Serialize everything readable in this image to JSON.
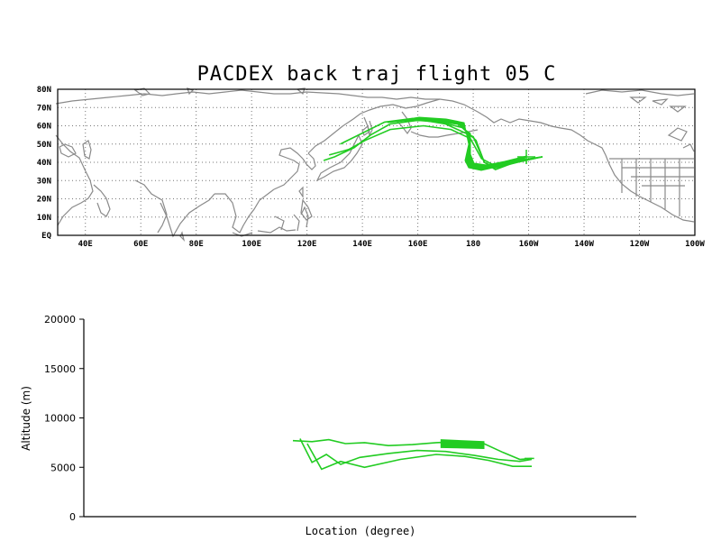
{
  "title": "PACDEX back traj flight 05 C",
  "map": {
    "lat_ticks": [
      "EQ",
      "10N",
      "20N",
      "30N",
      "40N",
      "50N",
      "60N",
      "70N",
      "80N"
    ],
    "lon_ticks": [
      "40E",
      "60E",
      "80E",
      "100E",
      "120E",
      "140E",
      "160E",
      "180",
      "160W",
      "140W",
      "120W",
      "100W"
    ],
    "trajectory_color": "#22cc22",
    "coast_color": "#8a8a8a"
  },
  "profile": {
    "ylabel": "Altitude (m)",
    "xlabel": "Location (degree)",
    "y_ticks": [
      "0",
      "5000",
      "10000",
      "15000",
      "20000"
    ]
  },
  "chart_data": [
    {
      "type": "map-trajectory",
      "title": "PACDEX back traj flight 05 C",
      "xlim": [
        30,
        260
      ],
      "ylim": [
        0,
        80
      ],
      "x_units": "degrees east",
      "y_units": "degrees north",
      "series": [
        {
          "x": [
            205,
            196,
            188,
            184,
            181,
            176,
            168,
            160,
            150,
            143,
            137,
            130,
            126
          ],
          "y": [
            43,
            40,
            37,
            40,
            52,
            59,
            62,
            63,
            61,
            55,
            48,
            43,
            41
          ]
        },
        {
          "x": [
            205,
            196,
            188,
            183,
            179,
            172,
            162,
            150,
            141,
            135,
            128
          ],
          "y": [
            43,
            41,
            38,
            42,
            53,
            58,
            60,
            58,
            52,
            47,
            44
          ]
        },
        {
          "x": [
            205,
            195,
            188,
            184,
            180,
            170,
            158,
            148,
            140,
            132
          ],
          "y": [
            43,
            40,
            36,
            40,
            54,
            61,
            64,
            62,
            56,
            50
          ]
        }
      ]
    },
    {
      "type": "line",
      "xlabel": "Location (degree)",
      "ylabel": "Altitude (m)",
      "ylim": [
        0,
        20000
      ],
      "series": [
        {
          "x": [
            0,
            8,
            15,
            22,
            30,
            40,
            50,
            60,
            70,
            80,
            88,
            95,
            100
          ],
          "y": [
            7700,
            7600,
            7800,
            7400,
            7500,
            7200,
            7300,
            7500,
            7600,
            7400,
            6500,
            5800,
            5900
          ]
        },
        {
          "x": [
            3,
            8,
            14,
            20,
            28,
            40,
            52,
            64,
            76,
            86,
            95,
            100
          ],
          "y": [
            7900,
            5500,
            6300,
            5300,
            6000,
            6400,
            6700,
            6600,
            6200,
            5800,
            5600,
            5800
          ]
        },
        {
          "x": [
            6,
            12,
            20,
            30,
            45,
            60,
            72,
            82,
            92,
            100
          ],
          "y": [
            7400,
            4800,
            5600,
            5000,
            5800,
            6300,
            6100,
            5700,
            5100,
            5100
          ]
        }
      ]
    }
  ]
}
